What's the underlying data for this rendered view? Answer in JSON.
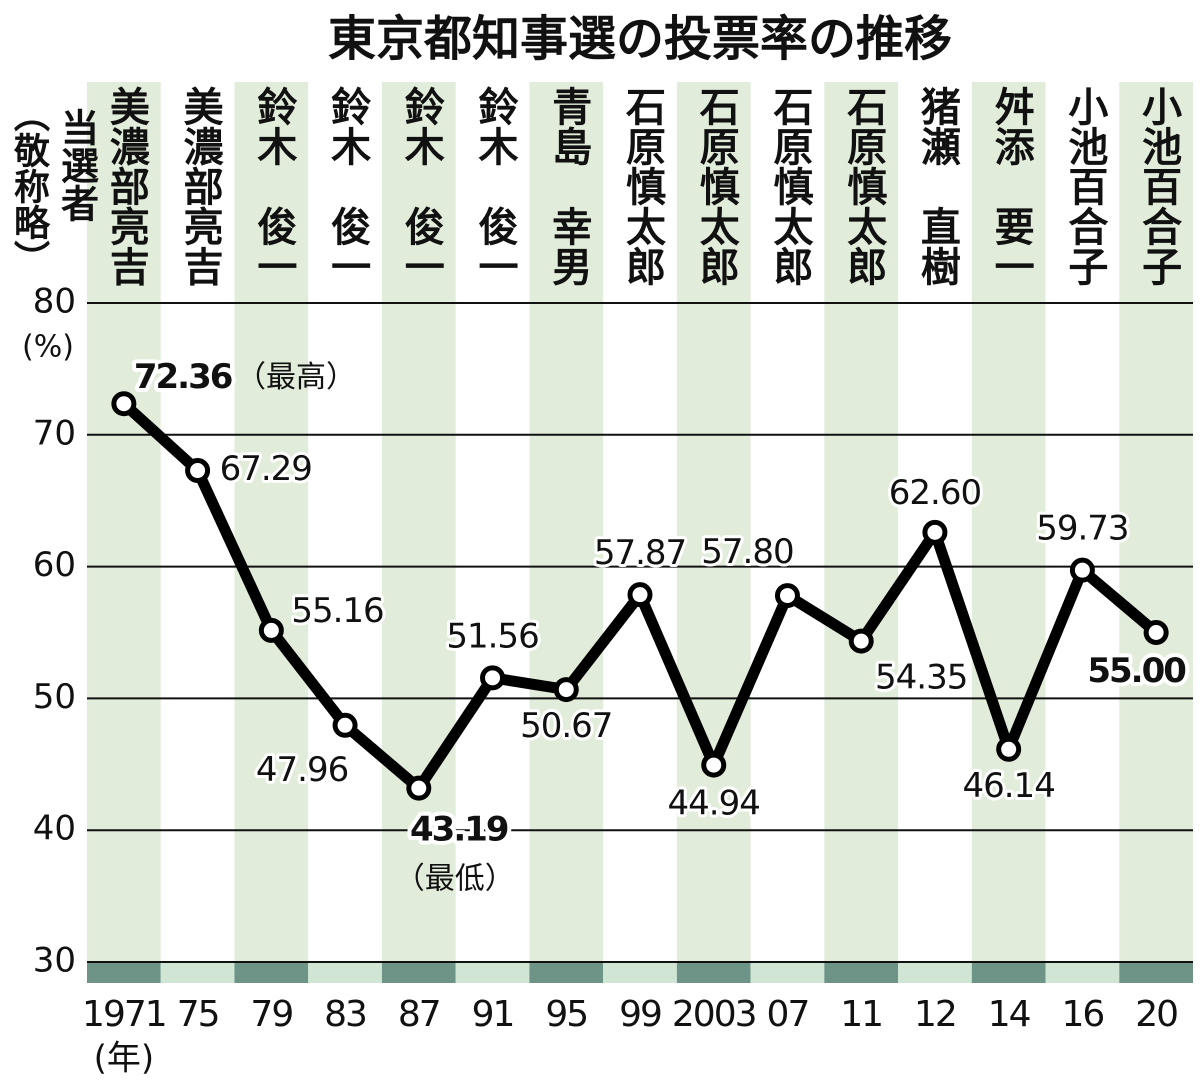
{
  "chart_data": {
    "type": "line",
    "title": "東京都知事選の投票率の推移",
    "candidate_label": "当選者",
    "candidate_note": "（敬称略）",
    "y_unit": "(%)",
    "x_unit": "(年)",
    "categories": [
      "1971",
      "75",
      "79",
      "83",
      "87",
      "91",
      "95",
      "99",
      "2003",
      "07",
      "11",
      "12",
      "14",
      "16",
      "20"
    ],
    "winners": [
      "美濃部亮吉",
      "美濃部亮吉",
      "鈴木　俊一",
      "鈴木　俊一",
      "鈴木　俊一",
      "鈴木　俊一",
      "青島　幸男",
      "石原慎太郎",
      "石原慎太郎",
      "石原慎太郎",
      "石原慎太郎",
      "猪瀬　直樹",
      "舛添　要一",
      "小池百合子",
      "小池百合子"
    ],
    "series": [
      {
        "name": "投票率",
        "color": "#000000",
        "values": [
          72.36,
          67.29,
          55.16,
          47.96,
          43.19,
          51.56,
          50.67,
          57.87,
          44.94,
          57.8,
          54.35,
          62.6,
          46.14,
          59.73,
          55.0
        ],
        "value_labels": [
          "72.36",
          "67.29",
          "55.16",
          "47.96",
          "43.19",
          "51.56",
          "50.67",
          "57.87",
          "44.94",
          "57.80",
          "54.35",
          "62.60",
          "46.14",
          "59.73",
          "55.00"
        ]
      }
    ],
    "annotations": [
      "（最高）",
      "（最低）"
    ],
    "ylim": [
      30,
      80
    ],
    "yticks": [
      30,
      40,
      50,
      60,
      70,
      80
    ],
    "grid": true
  }
}
